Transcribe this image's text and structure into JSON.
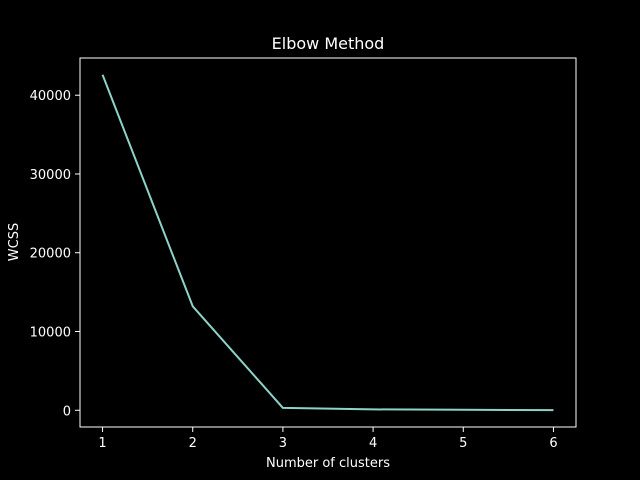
{
  "chart_data": {
    "type": "line",
    "title": "Elbow Method",
    "xlabel": "Number of clusters",
    "ylabel": "WCSS",
    "x": [
      1,
      2,
      3,
      4,
      5,
      6
    ],
    "series": [
      {
        "values": [
          42600,
          13200,
          300,
          110,
          60,
          10
        ]
      }
    ],
    "xlim": [
      0.75,
      6.25
    ],
    "ylim": [
      -2125,
      44725
    ],
    "xticks": [
      1,
      2,
      3,
      4,
      5,
      6
    ],
    "yticks": [
      0,
      10000,
      20000,
      30000,
      40000
    ],
    "grid": false,
    "legend": "none",
    "colors": {
      "background": "#000000",
      "axes": "#ffffff",
      "text": "#ffffff",
      "line": "#8dd3c7"
    }
  }
}
